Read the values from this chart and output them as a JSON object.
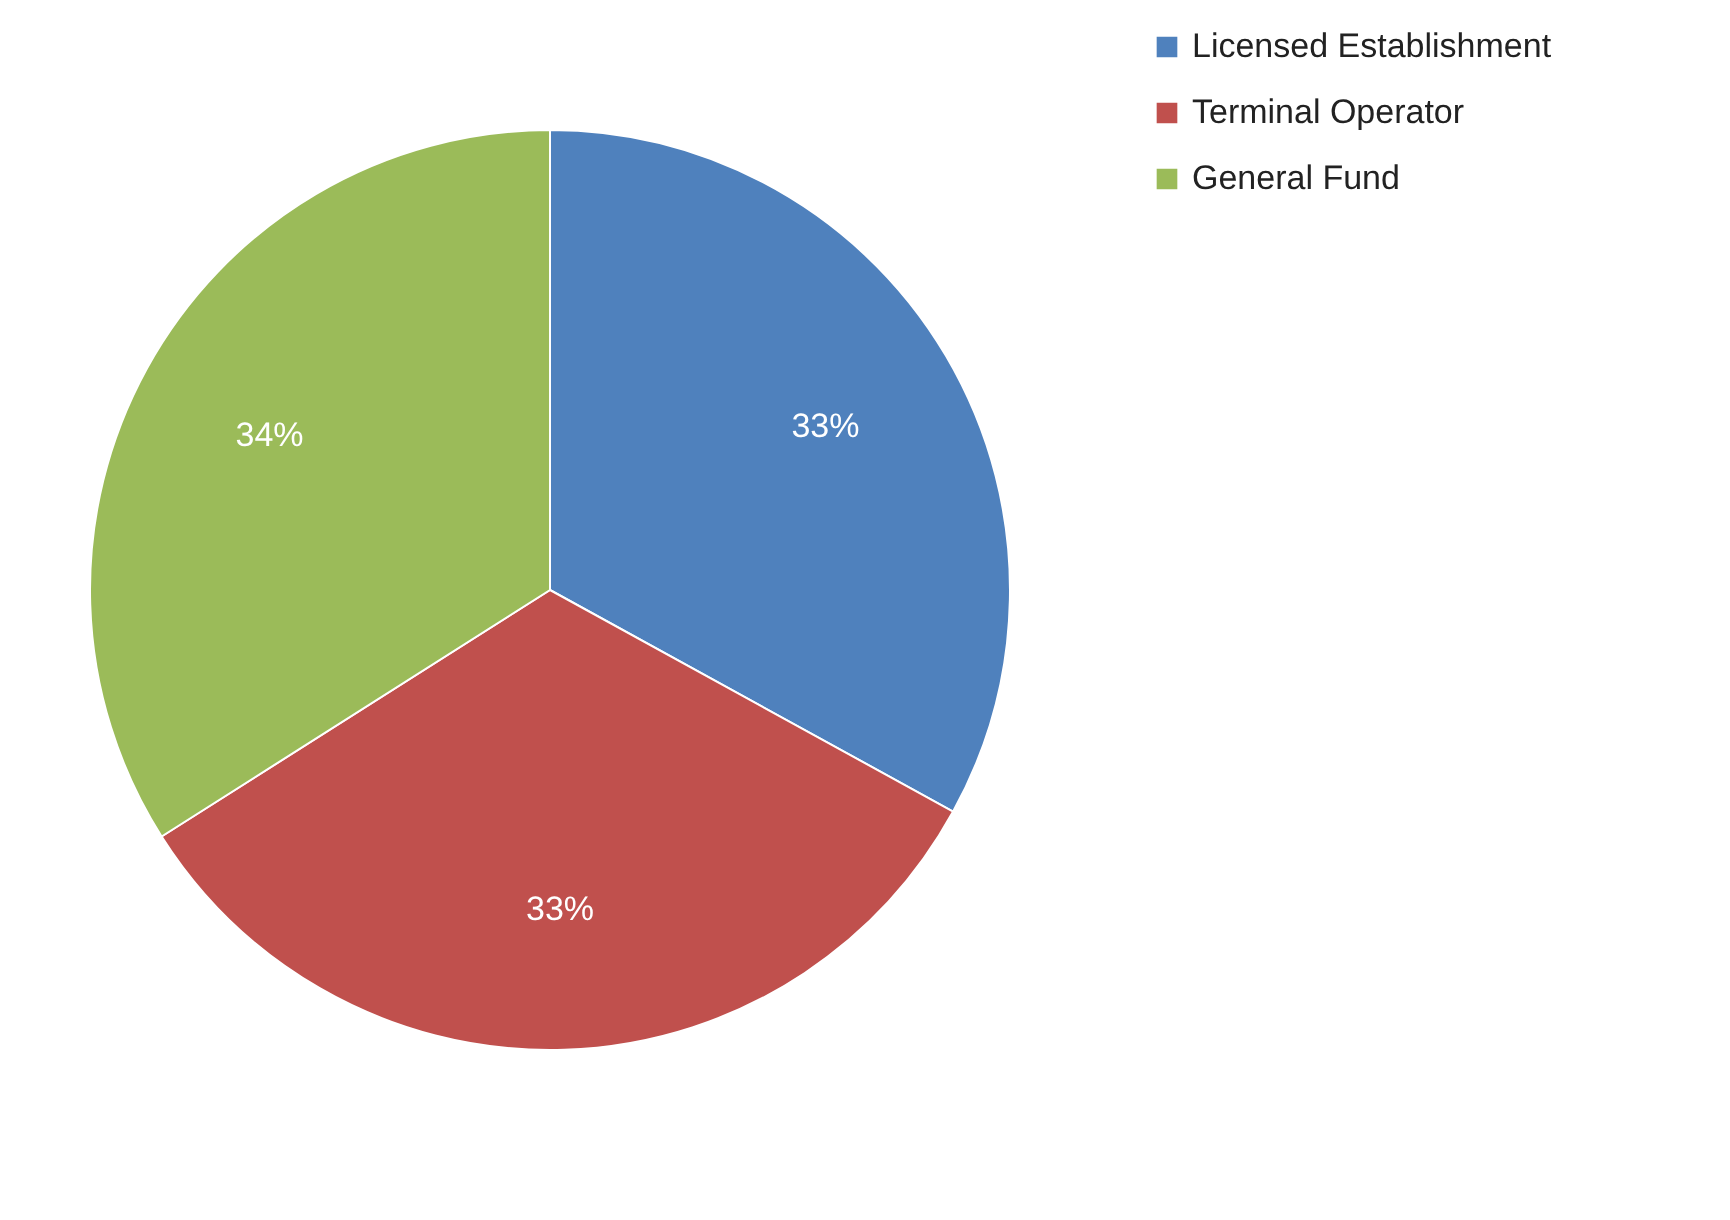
{
  "chart_data": {
    "type": "pie",
    "categories": [
      "Licensed Establishment",
      "Terminal Operator",
      "General Fund"
    ],
    "values": [
      33,
      33,
      34
    ],
    "colors": [
      "#4f81bd",
      "#c0504d",
      "#9bbb59"
    ],
    "value_labels": [
      "33%",
      "33%",
      "34%"
    ],
    "legend": "right"
  }
}
